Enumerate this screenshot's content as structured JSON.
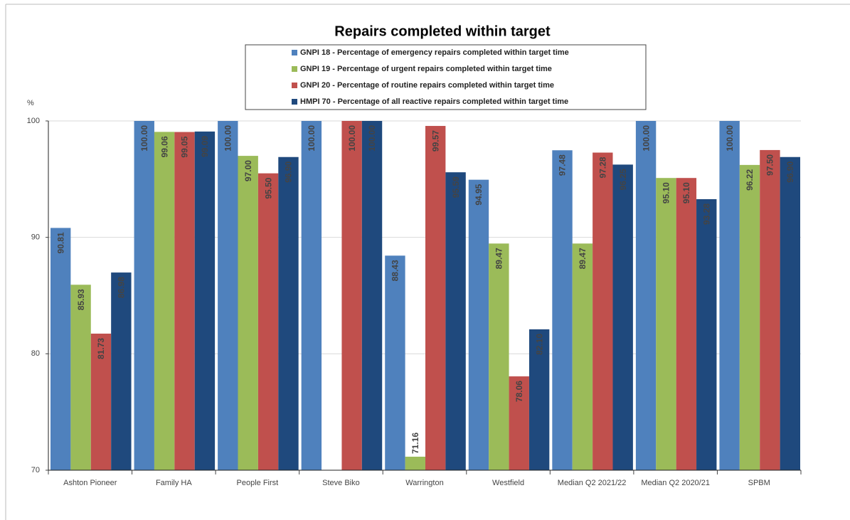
{
  "chart_data": {
    "type": "bar",
    "title": "Repairs completed within target",
    "ylabel": "%",
    "categories": [
      "Ashton Pioneer",
      "Family HA",
      "People First",
      "Steve Biko",
      "Warrington",
      "Westfield",
      "Median Q2 2021/22",
      "Median Q2 2020/21",
      "SPBM"
    ],
    "series": [
      {
        "name": "GNPI 18 -  Percentage of emergency repairs completed within target time",
        "color": "#4f81bd",
        "values": [
          90.81,
          100,
          100,
          100,
          88.43,
          94.95,
          97.48,
          100,
          100
        ],
        "value_labels": [
          "90.81",
          "100.00",
          "100.00",
          "100.00",
          "88.43",
          "94.95",
          "97.48",
          "100.00",
          "100.00"
        ]
      },
      {
        "name": "GNPI 19 - Percentage of urgent repairs completed within target time",
        "color": "#9bbb59",
        "values": [
          85.93,
          99.06,
          97.0,
          null,
          71.16,
          89.47,
          89.47,
          95.1,
          96.22
        ],
        "value_labels": [
          "85.93",
          "99.06",
          "97.00",
          null,
          "71.16",
          "89.47",
          "89.47",
          "95.10",
          "96.22"
        ]
      },
      {
        "name": "GNPI 20 - Percentage of routine repairs completed within target time",
        "color": "#c0504d",
        "values": [
          81.73,
          99.05,
          95.5,
          100,
          99.57,
          78.06,
          97.28,
          95.1,
          97.5
        ],
        "value_labels": [
          "81.73",
          "99.05",
          "95.50",
          "100.00",
          "99.57",
          "78.06",
          "97.28",
          "95.10",
          "97.50"
        ]
      },
      {
        "name": "HMPI 70 - Percentage of all reactive repairs completed within target time",
        "color": "#1f497d",
        "values": [
          86.98,
          99.09,
          96.9,
          100,
          95.59,
          82.1,
          96.25,
          93.28,
          96.9
        ],
        "value_labels": [
          "86.98",
          "99.09",
          "96.90",
          "100.00",
          "95.59",
          "82.10",
          "96.25",
          "93.28",
          "96.90"
        ]
      }
    ],
    "ylim": [
      70,
      100
    ],
    "yticks": [
      70,
      80,
      90,
      100
    ],
    "grid": true
  }
}
